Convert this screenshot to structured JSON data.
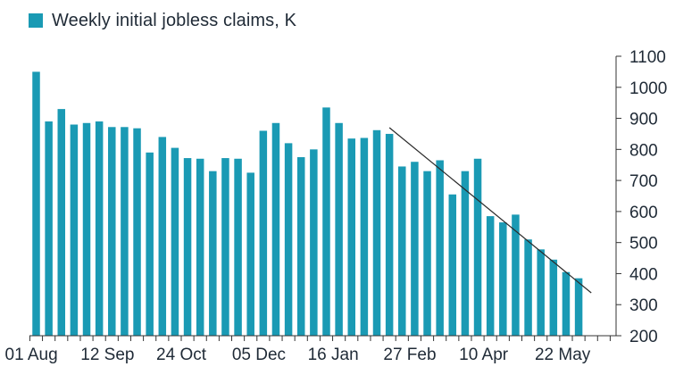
{
  "chart_data": {
    "type": "bar",
    "legend": "Weekly initial jobless claims, K",
    "bar_color": "#1a9ab4",
    "trend_color": "#2a2a2a",
    "ylim": [
      200,
      1100
    ],
    "y_ticks": [
      "200",
      "300",
      "400",
      "500",
      "600",
      "700",
      "800",
      "900",
      "1000",
      "1100"
    ],
    "x_tick_labels": [
      {
        "index": 0,
        "label": "01 Aug"
      },
      {
        "index": 6,
        "label": "12 Sep"
      },
      {
        "index": 12,
        "label": "24 Oct"
      },
      {
        "index": 18,
        "label": "05 Dec"
      },
      {
        "index": 24,
        "label": "16 Jan"
      },
      {
        "index": 30,
        "label": "27 Feb"
      },
      {
        "index": 36,
        "label": "10 Apr"
      },
      {
        "index": 42,
        "label": "22 May"
      }
    ],
    "values": [
      1050,
      890,
      930,
      880,
      885,
      890,
      872,
      872,
      868,
      790,
      840,
      805,
      772,
      770,
      730,
      772,
      770,
      725,
      860,
      885,
      820,
      775,
      800,
      935,
      885,
      835,
      837,
      862,
      850,
      745,
      760,
      730,
      765,
      655,
      730,
      770,
      585,
      565,
      590,
      510,
      478,
      445,
      405,
      385
    ],
    "trend_line": {
      "from": [
        28,
        870
      ],
      "to": [
        44,
        338
      ]
    }
  }
}
